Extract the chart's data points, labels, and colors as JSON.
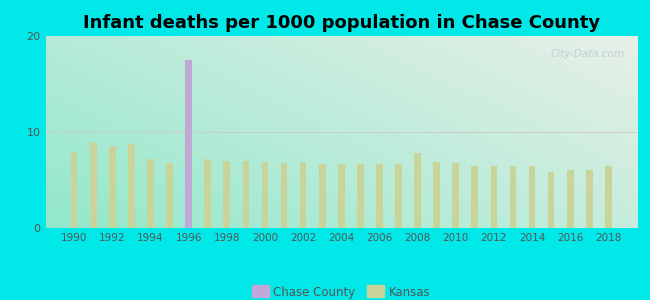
{
  "title": "Infant deaths per 1000 population in Chase County",
  "years": [
    1990,
    1991,
    1992,
    1993,
    1994,
    1995,
    1996,
    1997,
    1998,
    1999,
    2000,
    2001,
    2002,
    2003,
    2004,
    2005,
    2006,
    2007,
    2008,
    2009,
    2010,
    2011,
    2012,
    2013,
    2014,
    2015,
    2016,
    2017,
    2018
  ],
  "kansas_values": [
    7.9,
    9.0,
    8.5,
    8.8,
    7.2,
    6.8,
    8.0,
    7.2,
    7.0,
    7.0,
    6.9,
    6.8,
    6.9,
    6.7,
    6.7,
    6.7,
    6.7,
    6.7,
    7.8,
    6.9,
    6.8,
    6.5,
    6.5,
    6.5,
    6.5,
    5.8,
    6.0,
    6.0,
    6.5
  ],
  "chase_values": [
    0,
    0,
    0,
    0,
    0,
    0,
    17.5,
    0,
    0,
    0,
    0,
    0,
    0,
    0,
    0,
    0,
    0,
    0,
    0,
    0,
    0,
    0,
    0,
    0,
    0,
    0,
    0,
    0,
    0
  ],
  "kansas_color": "#c8d49a",
  "chase_color": "#c0a8d8",
  "outer_background": "#00e8e8",
  "ylim": [
    0,
    20
  ],
  "yticks": [
    0,
    10,
    20
  ],
  "bar_width": 0.35,
  "title_fontsize": 13,
  "legend_chase": "Chase County",
  "legend_kansas": "Kansas",
  "xticks": [
    1990,
    1992,
    1994,
    1996,
    1998,
    2000,
    2002,
    2004,
    2006,
    2008,
    2010,
    2012,
    2014,
    2016,
    2018
  ],
  "xlim": [
    1988.5,
    2019.5
  ],
  "gradient_left": "#92e8cc",
  "gradient_right": "#e8f0e8",
  "grid_color": "#cccccc",
  "watermark_text": "City-Data.com",
  "watermark_color": "#aabbcc",
  "watermark_alpha": 0.6
}
